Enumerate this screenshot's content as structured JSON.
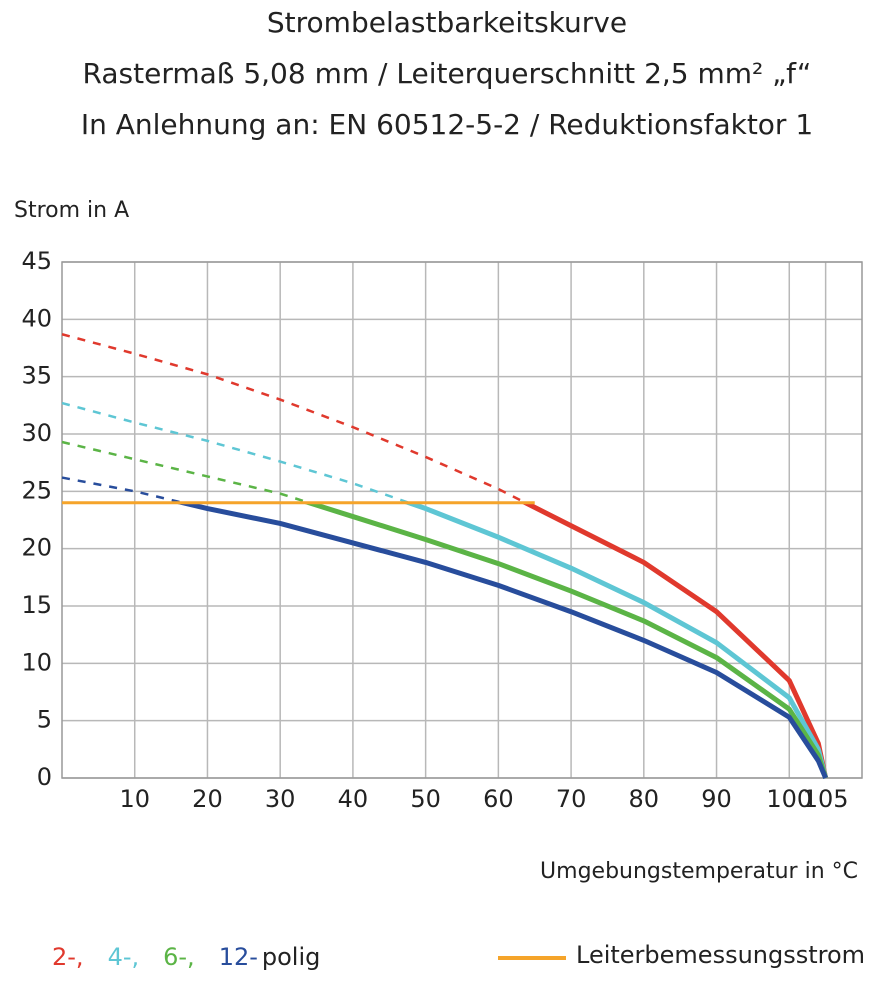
{
  "chart_data": {
    "type": "line",
    "title": "Strombelastbarkeitskurve",
    "subtitle": [
      "Rastermaß 5,08 mm / Leiterquerschnitt 2,5 mm² „f“",
      "In Anlehnung an: EN 60512-5-2 / Reduktionsfaktor 1"
    ],
    "y_label": "Strom in A",
    "x_label": "Umgebungstemperatur in °C",
    "x": [
      0,
      10,
      20,
      30,
      40,
      50,
      60,
      70,
      80,
      90,
      100,
      104,
      105
    ],
    "series": [
      {
        "name": "2-,",
        "color": "#e0392d",
        "values": [
          38.7,
          37,
          35.2,
          33,
          30.6,
          28,
          25.2,
          22,
          18.8,
          14.5,
          8.5,
          3,
          0
        ]
      },
      {
        "name": "4-,",
        "color": "#5ec6d4",
        "values": [
          32.7,
          31,
          29.4,
          27.6,
          25.7,
          23.5,
          21,
          18.3,
          15.3,
          11.8,
          7,
          2.5,
          0
        ]
      },
      {
        "name": "6-,",
        "color": "#5bb446",
        "values": [
          29.3,
          27.8,
          26.3,
          24.8,
          22.8,
          20.8,
          18.7,
          16.3,
          13.7,
          10.5,
          6,
          2,
          0
        ]
      },
      {
        "name": "12-",
        "color": "#284d9c",
        "values": [
          26.2,
          25,
          23.5,
          22.2,
          20.5,
          18.8,
          16.8,
          14.5,
          12,
          9.2,
          5.3,
          1.5,
          0
        ]
      }
    ],
    "legend_suffix": "polig",
    "reference_line": {
      "name": "Leiterbemessungsstrom",
      "color": "#f5a42a",
      "value": 24,
      "x": [
        0,
        65
      ]
    },
    "xlim": [
      0,
      110
    ],
    "xticks": [
      10,
      20,
      30,
      40,
      50,
      60,
      70,
      80,
      90,
      100,
      105
    ],
    "ylim": [
      0,
      45
    ],
    "yticks": [
      0,
      5,
      10,
      15,
      20,
      25,
      30,
      35,
      40,
      45
    ],
    "grid": true
  }
}
